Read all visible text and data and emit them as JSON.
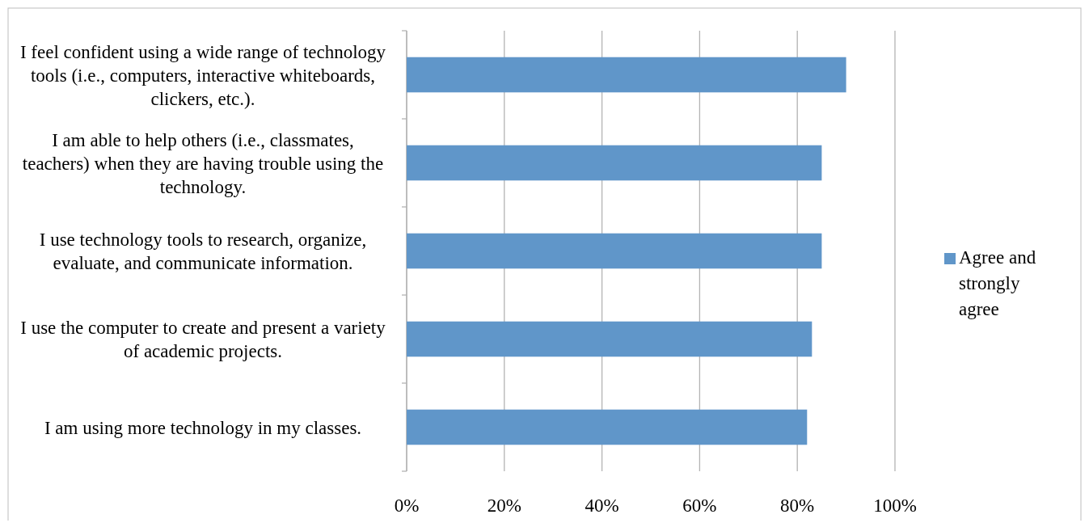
{
  "chart_data": {
    "type": "bar",
    "orientation": "horizontal",
    "categories": [
      "I feel confident using a wide range of technology tools (i.e., computers, interactive whiteboards, clickers, etc.).",
      "I am able to help others (i.e., classmates, teachers) when they are having trouble using the technology.",
      "I use technology tools to research, organize, evaluate, and communicate information.",
      "I use the computer to create and present a variety of academic projects.",
      "I am using more technology in my classes."
    ],
    "series": [
      {
        "name": "Agree and strongly agree",
        "color": "#6096c9",
        "values": [
          90,
          85,
          85,
          83,
          82
        ]
      }
    ],
    "xlim": [
      0,
      100
    ],
    "xticks": [
      {
        "value": 0,
        "label": "0%"
      },
      {
        "value": 20,
        "label": "20%"
      },
      {
        "value": 40,
        "label": "40%"
      },
      {
        "value": 60,
        "label": "60%"
      },
      {
        "value": 80,
        "label": "80%"
      },
      {
        "value": 100,
        "label": "100%"
      }
    ],
    "grid": "x",
    "legend": "right"
  }
}
